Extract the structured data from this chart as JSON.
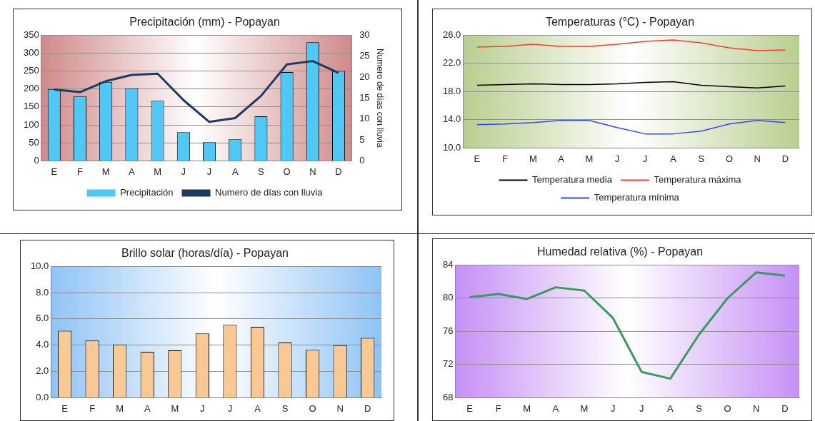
{
  "chart_data": [
    {
      "type": "bar",
      "title": "Precipitación (mm) - Popayan",
      "y2label": "Numero de días con lluvia",
      "categories": [
        "E",
        "F",
        "M",
        "A",
        "M",
        "J",
        "J",
        "A",
        "S",
        "O",
        "N",
        "D"
      ],
      "series": [
        {
          "name": "Precipitación",
          "color": "#4fc8f5",
          "values": [
            200,
            180,
            220,
            202,
            167,
            80,
            52,
            60,
            124,
            247,
            330,
            250
          ]
        },
        {
          "name": "Numero de días con lluvia",
          "type": "line",
          "axis": "y2",
          "color": "#1f3a5f",
          "values": [
            17,
            16.4,
            19,
            20.5,
            20.8,
            14.5,
            9.3,
            10.2,
            15.5,
            23,
            23.8,
            21
          ]
        }
      ],
      "ylim": [
        0,
        350
      ],
      "yticks": [
        0,
        50,
        100,
        150,
        200,
        250,
        300,
        350
      ],
      "y2lim": [
        0,
        30
      ],
      "y2ticks": [
        0,
        5,
        10,
        15,
        20,
        25,
        30
      ],
      "grid": "y",
      "legend": "bottom",
      "marker": "none"
    },
    {
      "type": "line",
      "title": "Temperaturas (°C) - Popayan",
      "categories": [
        "E",
        "F",
        "M",
        "A",
        "M",
        "J",
        "J",
        "A",
        "S",
        "O",
        "N",
        "D"
      ],
      "series": [
        {
          "name": "Temperatura media",
          "color": "#000000",
          "values": [
            18.9,
            19.0,
            19.1,
            19.0,
            19.0,
            19.1,
            19.3,
            19.4,
            18.9,
            18.7,
            18.5,
            18.8
          ]
        },
        {
          "name": "Temperatura máxima",
          "color": "#ff3b30",
          "values": [
            24.3,
            24.4,
            24.7,
            24.4,
            24.4,
            24.7,
            25.1,
            25.3,
            24.9,
            24.2,
            23.8,
            23.9
          ]
        },
        {
          "name": "Temperatura mínima",
          "color": "#3344ff",
          "values": [
            13.3,
            13.4,
            13.6,
            13.9,
            13.9,
            12.9,
            12.0,
            12.0,
            12.4,
            13.4,
            13.9,
            13.6
          ]
        }
      ],
      "ylim": [
        10,
        26
      ],
      "yticks": [
        {
          "value": 10,
          "label": "10.0"
        },
        {
          "value": 14,
          "label": "14.0"
        },
        {
          "value": 18,
          "label": "18.0"
        },
        {
          "value": 22,
          "label": "22.0"
        },
        {
          "value": 26,
          "label": "26.0"
        }
      ],
      "grid": "y",
      "legend": "bottom",
      "marker": "none"
    },
    {
      "type": "bar",
      "title": "Brillo solar (horas/día) - Popayan",
      "categories": [
        "E",
        "F",
        "M",
        "A",
        "M",
        "J",
        "J",
        "A",
        "S",
        "O",
        "N",
        "D"
      ],
      "series": [
        {
          "color": "#f8c895",
          "values": [
            5.1,
            4.35,
            4.05,
            3.5,
            3.6,
            4.9,
            5.55,
            5.4,
            4.2,
            3.65,
            4.0,
            4.55
          ]
        }
      ],
      "ylim": [
        0,
        10
      ],
      "yticks": [
        {
          "value": 0,
          "label": "0.0"
        },
        {
          "value": 2,
          "label": "2.0"
        },
        {
          "value": 4,
          "label": "4.0"
        },
        {
          "value": 6,
          "label": "6.0"
        },
        {
          "value": 8,
          "label": "8.0"
        },
        {
          "value": 10,
          "label": "10.0"
        }
      ],
      "grid": "y"
    },
    {
      "type": "line",
      "title": "Humedad relativa (%) - Popayan",
      "categories": [
        "E",
        "F",
        "M",
        "A",
        "M",
        "J",
        "J",
        "A",
        "S",
        "O",
        "N",
        "D"
      ],
      "series": [
        {
          "color": "#3a9a5f",
          "values": [
            80.1,
            80.5,
            79.9,
            81.3,
            80.9,
            77.6,
            71.1,
            70.3,
            75.6,
            80.0,
            83.1,
            82.7
          ]
        }
      ],
      "ylim": [
        68,
        84
      ],
      "yticks": [
        68,
        72,
        76,
        80,
        84
      ],
      "grid": "y",
      "marker": "none"
    }
  ]
}
